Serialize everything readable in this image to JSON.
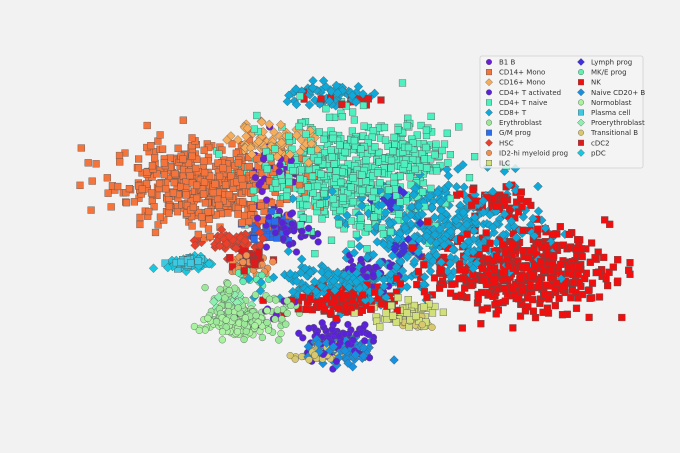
{
  "chart_data": {
    "type": "scatter",
    "title": "",
    "xlabel": "",
    "ylabel": "",
    "axes_visible": false,
    "grid": false,
    "legend_placement": "top-right",
    "legend_columns": 2,
    "xlim": [
      0,
      100
    ],
    "ylim": [
      0,
      100
    ],
    "series": [
      {
        "name": "B1 B",
        "color": "#6a1ed8",
        "marker": "circle",
        "clusters": [
          [
            33,
            63,
            1.5,
            6,
            20
          ],
          [
            37,
            68,
            2,
            2.5,
            18
          ],
          [
            33,
            27,
            3,
            2,
            15
          ]
        ]
      },
      {
        "name": "CD14+ Mono",
        "color": "#f4743c",
        "marker": "square",
        "clusters": [
          [
            22,
            65,
            8,
            6,
            420
          ],
          [
            27,
            59,
            3,
            3,
            40
          ]
        ]
      },
      {
        "name": "CD16+ Mono",
        "color": "#f5ad5c",
        "marker": "diamond",
        "clusters": [
          [
            36,
            76,
            4,
            3,
            90
          ]
        ]
      },
      {
        "name": "CD4+ T activated",
        "color": "#5a22d8",
        "marker": "circle",
        "clusters": [
          [
            37,
            51,
            3,
            2.5,
            60
          ],
          [
            52,
            39,
            3,
            2,
            50
          ],
          [
            47,
            20,
            3,
            2.5,
            90
          ]
        ]
      },
      {
        "name": "CD4+ T naive",
        "color": "#4ef0c0",
        "marker": "square",
        "clusters": [
          [
            49,
            67,
            8,
            8,
            560
          ],
          [
            61,
            72,
            3,
            5,
            70
          ]
        ]
      },
      {
        "name": "CD8+ T",
        "color": "#10a8d8",
        "marker": "diamond",
        "clusters": [
          [
            66,
            52,
            9,
            7,
            420
          ],
          [
            47,
            36,
            6,
            3,
            180
          ],
          [
            45,
            90,
            4,
            1.8,
            60
          ]
        ]
      },
      {
        "name": "Erythroblast",
        "color": "#9be89a",
        "marker": "circle",
        "clusters": [
          [
            31,
            27,
            3.5,
            2.5,
            110
          ],
          [
            27,
            33,
            1.5,
            1.5,
            25
          ]
        ]
      },
      {
        "name": "G/M prog",
        "color": "#2a6ef0",
        "marker": "square",
        "clusters": [
          [
            34,
            52,
            2,
            2,
            30
          ]
        ]
      },
      {
        "name": "HSC",
        "color": "#e8402a",
        "marker": "diamond",
        "clusters": [
          [
            28,
            48,
            3,
            2,
            50
          ]
        ]
      },
      {
        "name": "ID2-hi myeloid prog",
        "color": "#f09050",
        "marker": "circle",
        "clusters": [
          [
            30,
            41,
            2.5,
            1.5,
            30
          ]
        ]
      },
      {
        "name": "ILC",
        "color": "#d2e07a",
        "marker": "square",
        "clusters": [
          [
            59,
            27,
            3,
            2,
            60
          ]
        ]
      },
      {
        "name": "Lymph prog",
        "color": "#4030e0",
        "marker": "diamond",
        "clusters": [
          [
            59,
            47,
            1.5,
            1.5,
            20
          ],
          [
            57,
            61,
            1.5,
            1.5,
            15
          ]
        ]
      },
      {
        "name": "MK/E prog",
        "color": "#60f0b0",
        "marker": "circle",
        "clusters": [
          [
            31,
            38,
            1.5,
            1,
            15
          ]
        ]
      },
      {
        "name": "NK",
        "color": "#f00e0e",
        "marker": "square",
        "clusters": [
          [
            80,
            40,
            8,
            6,
            450
          ],
          [
            76,
            60,
            3,
            2,
            50
          ],
          [
            48,
            31,
            5,
            2,
            120
          ]
        ]
      },
      {
        "name": "Naive CD20+ B",
        "color": "#1890e0",
        "marker": "diamond",
        "clusters": [
          [
            48,
            17,
            3,
            2,
            70
          ]
        ]
      },
      {
        "name": "Normoblast",
        "color": "#a8f2a0",
        "marker": "circle",
        "clusters": [
          [
            29,
            24,
            3.5,
            2,
            90
          ]
        ]
      },
      {
        "name": "Plasma cell",
        "color": "#40c8e0",
        "marker": "square",
        "clusters": [
          [
            19,
            42,
            1.5,
            1,
            25
          ]
        ]
      },
      {
        "name": "Proerythroblast",
        "color": "#8ef0b0",
        "marker": "diamond",
        "clusters": [
          [
            27,
            31,
            1.5,
            1,
            15
          ]
        ]
      },
      {
        "name": "Transitional B",
        "color": "#d8c86e",
        "marker": "circle",
        "clusters": [
          [
            43,
            16,
            2,
            1.5,
            35
          ],
          [
            61,
            25,
            2,
            1,
            20
          ]
        ]
      },
      {
        "name": "cDC2",
        "color": "#e01a1a",
        "marker": "square",
        "clusters": [
          [
            31,
            43,
            2,
            1.5,
            30
          ],
          [
            48,
            89,
            3,
            1,
            20
          ]
        ]
      },
      {
        "name": "pDC",
        "color": "#18c8e0",
        "marker": "diamond",
        "clusters": [
          [
            20,
            42,
            2,
            1,
            40
          ]
        ]
      }
    ]
  }
}
